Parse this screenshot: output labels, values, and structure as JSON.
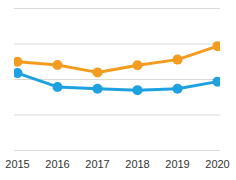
{
  "chart_data": {
    "type": "line",
    "categories": [
      "2015",
      "2016",
      "2017",
      "2018",
      "2019",
      "2020"
    ],
    "series": [
      {
        "color": "#f39c1f",
        "values": [
          25,
          24.1,
          22,
          24,
          25.6,
          29.4
        ]
      },
      {
        "color": "#1ea1e0",
        "values": [
          21.8,
          17.9,
          17.4,
          17,
          17.4,
          19.4
        ]
      }
    ],
    "ylim": [
      0,
      40
    ],
    "yticks": [
      0,
      10,
      20,
      30,
      40
    ],
    "grid": true,
    "tick_labels": "x",
    "marker": "circle"
  }
}
